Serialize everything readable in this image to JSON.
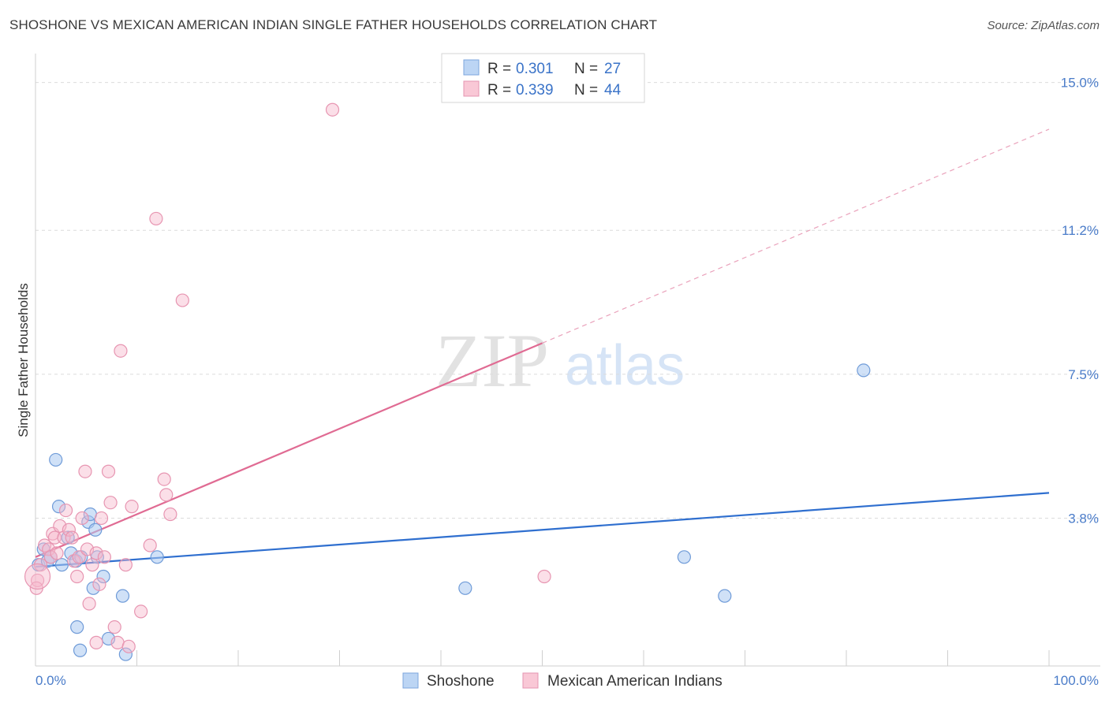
{
  "title": "SHOSHONE VS MEXICAN AMERICAN INDIAN SINGLE FATHER HOUSEHOLDS CORRELATION CHART",
  "source": "Source: ZipAtlas.com",
  "watermark": {
    "zip": "ZIP",
    "atlas": "atlas"
  },
  "colors": {
    "blue": "#a9c8f0",
    "blue_line": "#2f6fcf",
    "pink": "#f7b8cb",
    "pink_line": "#e06b93",
    "axis_label": "#4a7cc9"
  },
  "legend": {
    "rows": [
      {
        "r_label": "R =",
        "r_value": "0.301",
        "n_label": "N =",
        "n_value": "27"
      },
      {
        "r_label": "R =",
        "r_value": "0.339",
        "n_label": "N =",
        "n_value": "44"
      }
    ]
  },
  "chart_data": {
    "type": "scatter",
    "title": "SHOSHONE VS MEXICAN AMERICAN INDIAN SINGLE FATHER HOUSEHOLDS CORRELATION CHART",
    "xlabel": "",
    "ylabel": "Single Father Households",
    "xlim": [
      0,
      100
    ],
    "ylim": [
      0,
      15.5
    ],
    "x_tick_labels": [
      "0.0%",
      "100.0%"
    ],
    "y_ticks": [
      3.8,
      7.5,
      11.2,
      15.0
    ],
    "y_tick_labels": [
      "3.8%",
      "7.5%",
      "11.2%",
      "15.0%"
    ],
    "grid": "horizontal dashed",
    "legend_position": "top-center",
    "series": [
      {
        "name": "Shoshone",
        "color": "#a9c8f0",
        "points": [
          [
            0.3,
            2.6
          ],
          [
            0.8,
            3.0
          ],
          [
            1.2,
            2.7
          ],
          [
            1.5,
            2.8
          ],
          [
            2.0,
            5.3
          ],
          [
            2.3,
            4.1
          ],
          [
            2.6,
            2.6
          ],
          [
            3.2,
            3.3
          ],
          [
            3.5,
            2.9
          ],
          [
            4.0,
            2.7
          ],
          [
            4.1,
            1.0
          ],
          [
            4.4,
            0.4
          ],
          [
            4.5,
            2.8
          ],
          [
            5.2,
            3.7
          ],
          [
            5.4,
            3.9
          ],
          [
            5.7,
            2.0
          ],
          [
            5.9,
            3.5
          ],
          [
            6.1,
            2.8
          ],
          [
            6.7,
            2.3
          ],
          [
            7.2,
            0.7
          ],
          [
            8.6,
            1.8
          ],
          [
            8.9,
            0.3
          ],
          [
            12.0,
            2.8
          ],
          [
            42.4,
            2.0
          ],
          [
            64.0,
            2.8
          ],
          [
            68.0,
            1.8
          ],
          [
            81.7,
            7.6
          ]
        ],
        "trend": {
          "x": [
            0,
            100
          ],
          "y": [
            2.55,
            4.45
          ]
        }
      },
      {
        "name": "Mexican American Indians",
        "color": "#f7b8cb",
        "points": [
          [
            0.2,
            2.2
          ],
          [
            0.5,
            2.6
          ],
          [
            0.9,
            3.1
          ],
          [
            1.3,
            3.0
          ],
          [
            1.5,
            2.8
          ],
          [
            1.7,
            3.4
          ],
          [
            1.9,
            3.3
          ],
          [
            2.1,
            2.9
          ],
          [
            2.4,
            3.6
          ],
          [
            2.8,
            3.3
          ],
          [
            3.0,
            4.0
          ],
          [
            3.3,
            3.5
          ],
          [
            3.6,
            3.3
          ],
          [
            3.8,
            2.7
          ],
          [
            4.1,
            2.3
          ],
          [
            4.3,
            2.8
          ],
          [
            4.6,
            3.8
          ],
          [
            4.9,
            5.0
          ],
          [
            5.1,
            3.0
          ],
          [
            5.3,
            1.6
          ],
          [
            5.6,
            2.6
          ],
          [
            6.0,
            2.9
          ],
          [
            6.3,
            2.1
          ],
          [
            6.5,
            3.8
          ],
          [
            6.8,
            2.8
          ],
          [
            7.2,
            5.0
          ],
          [
            7.4,
            4.2
          ],
          [
            7.8,
            1.0
          ],
          [
            8.1,
            0.6
          ],
          [
            8.4,
            8.1
          ],
          [
            8.9,
            2.6
          ],
          [
            9.2,
            0.5
          ],
          [
            9.5,
            4.1
          ],
          [
            10.4,
            1.4
          ],
          [
            11.3,
            3.1
          ],
          [
            11.9,
            11.5
          ],
          [
            12.7,
            4.8
          ],
          [
            12.9,
            4.4
          ],
          [
            13.3,
            3.9
          ],
          [
            14.5,
            9.4
          ],
          [
            29.3,
            14.3
          ],
          [
            50.2,
            2.3
          ],
          [
            0.1,
            2.0
          ],
          [
            6.0,
            0.6
          ]
        ],
        "trend": {
          "x": [
            0,
            50
          ],
          "y": [
            2.8,
            8.3
          ]
        },
        "trend_extrapolated": {
          "x": [
            50,
            100
          ],
          "y": [
            8.3,
            13.8
          ]
        }
      }
    ]
  },
  "bottom_legend": [
    {
      "label": "Shoshone"
    },
    {
      "label": "Mexican American Indians"
    }
  ]
}
